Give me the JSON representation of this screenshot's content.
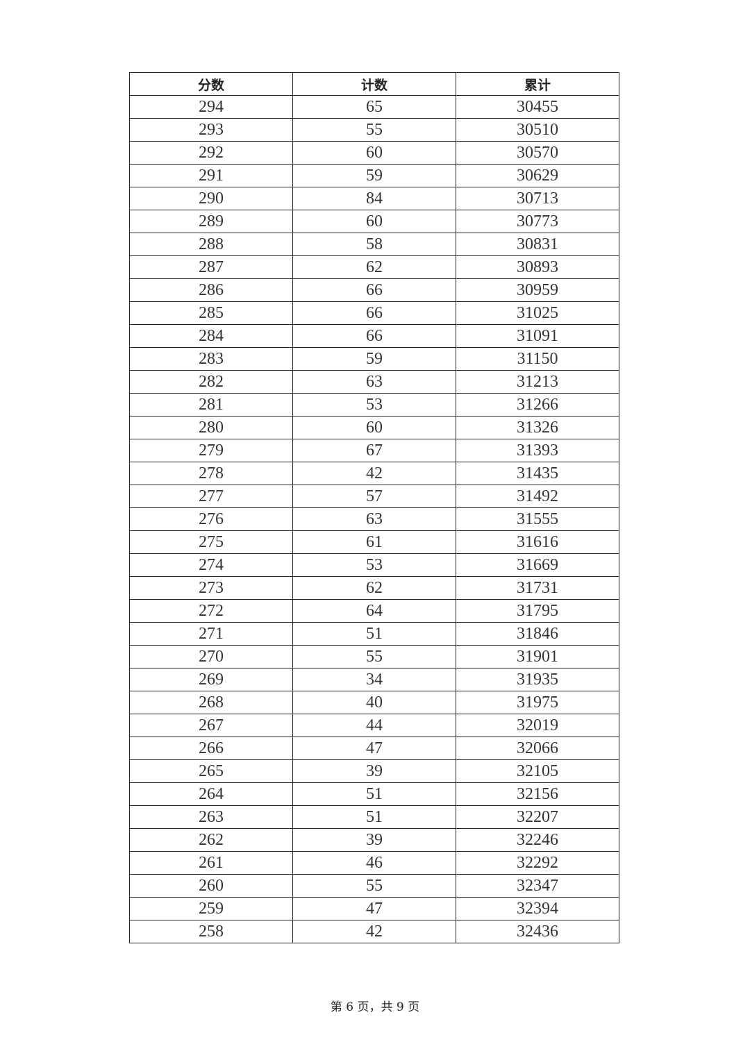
{
  "table": {
    "headers": [
      "分数",
      "计数",
      "累计"
    ],
    "rows": [
      [
        "294",
        "65",
        "30455"
      ],
      [
        "293",
        "55",
        "30510"
      ],
      [
        "292",
        "60",
        "30570"
      ],
      [
        "291",
        "59",
        "30629"
      ],
      [
        "290",
        "84",
        "30713"
      ],
      [
        "289",
        "60",
        "30773"
      ],
      [
        "288",
        "58",
        "30831"
      ],
      [
        "287",
        "62",
        "30893"
      ],
      [
        "286",
        "66",
        "30959"
      ],
      [
        "285",
        "66",
        "31025"
      ],
      [
        "284",
        "66",
        "31091"
      ],
      [
        "283",
        "59",
        "31150"
      ],
      [
        "282",
        "63",
        "31213"
      ],
      [
        "281",
        "53",
        "31266"
      ],
      [
        "280",
        "60",
        "31326"
      ],
      [
        "279",
        "67",
        "31393"
      ],
      [
        "278",
        "42",
        "31435"
      ],
      [
        "277",
        "57",
        "31492"
      ],
      [
        "276",
        "63",
        "31555"
      ],
      [
        "275",
        "61",
        "31616"
      ],
      [
        "274",
        "53",
        "31669"
      ],
      [
        "273",
        "62",
        "31731"
      ],
      [
        "272",
        "64",
        "31795"
      ],
      [
        "271",
        "51",
        "31846"
      ],
      [
        "270",
        "55",
        "31901"
      ],
      [
        "269",
        "34",
        "31935"
      ],
      [
        "268",
        "40",
        "31975"
      ],
      [
        "267",
        "44",
        "32019"
      ],
      [
        "266",
        "47",
        "32066"
      ],
      [
        "265",
        "39",
        "32105"
      ],
      [
        "264",
        "51",
        "32156"
      ],
      [
        "263",
        "51",
        "32207"
      ],
      [
        "262",
        "39",
        "32246"
      ],
      [
        "261",
        "46",
        "32292"
      ],
      [
        "260",
        "55",
        "32347"
      ],
      [
        "259",
        "47",
        "32394"
      ],
      [
        "258",
        "42",
        "32436"
      ]
    ]
  },
  "footer": "第 6 页，共 9 页"
}
